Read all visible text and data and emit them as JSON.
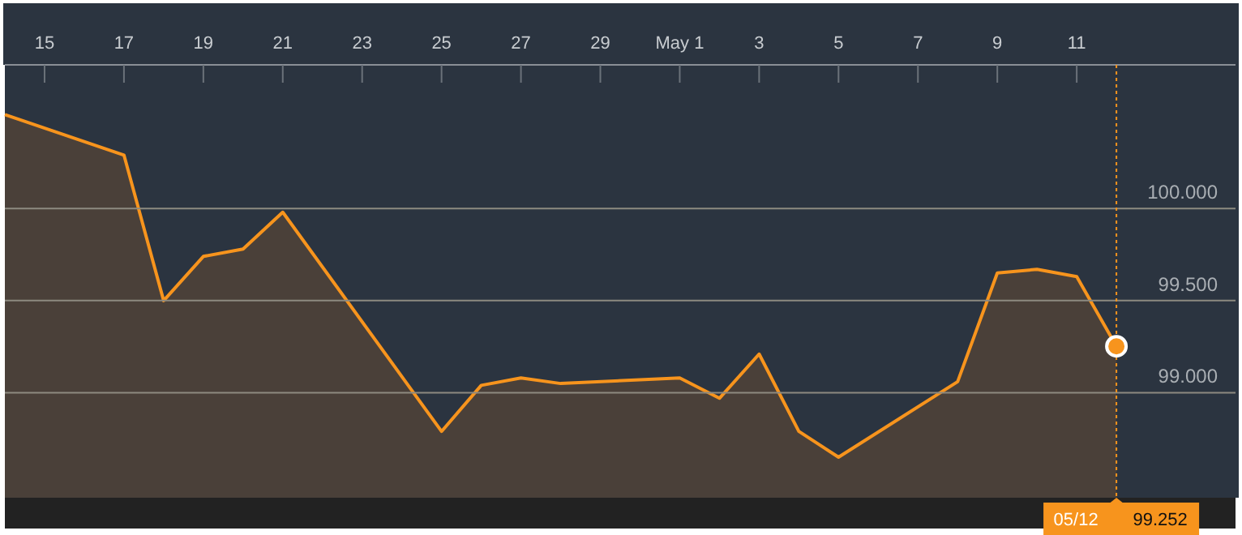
{
  "chart_data": {
    "type": "area",
    "x": [
      "--04-14",
      "--04-17",
      "--04-18",
      "--04-19",
      "--04-20",
      "--04-21",
      "--04-25",
      "--04-26",
      "--04-27",
      "--04-28",
      "--05-01",
      "--05-02",
      "--05-03",
      "--05-04",
      "--05-05",
      "--05-08",
      "--05-09",
      "--05-10",
      "--05-11",
      "--05-12"
    ],
    "series": [
      {
        "color": "#f7941d",
        "values": [
          100.51,
          100.29,
          99.5,
          99.74,
          99.78,
          99.98,
          98.79,
          99.04,
          99.08,
          99.05,
          99.08,
          98.97,
          99.21,
          98.79,
          98.65,
          99.06,
          99.65,
          99.67,
          99.63,
          99.252
        ]
      }
    ],
    "xlim": [
      "--04-14",
      "--05-15"
    ],
    "xticks": [
      {
        "value": "--04-15",
        "label": "15"
      },
      {
        "value": "--04-17",
        "label": "17"
      },
      {
        "value": "--04-19",
        "label": "19"
      },
      {
        "value": "--04-21",
        "label": "21"
      },
      {
        "value": "--04-23",
        "label": "23"
      },
      {
        "value": "--04-25",
        "label": "25"
      },
      {
        "value": "--04-27",
        "label": "27"
      },
      {
        "value": "--04-29",
        "label": "29"
      },
      {
        "value": "--05-01",
        "label": "May 1"
      },
      {
        "value": "--05-03",
        "label": "3"
      },
      {
        "value": "--05-05",
        "label": "5"
      },
      {
        "value": "--05-07",
        "label": "7"
      },
      {
        "value": "--05-09",
        "label": "9"
      },
      {
        "value": "--05-11",
        "label": "11"
      }
    ],
    "ylim": [
      98.43,
      100.78
    ],
    "yticks": [
      {
        "value": 99,
        "label": "99.000"
      },
      {
        "value": 99.5,
        "label": "99.500"
      },
      {
        "value": 100,
        "label": "100.000"
      }
    ],
    "grid": "y",
    "ref_lines": [
      {
        "axis": "x",
        "value": "--05-12",
        "label": "05/12",
        "color": "#f7941d",
        "line_style": "dotted"
      }
    ],
    "annotations": [
      "99.252"
    ]
  }
}
